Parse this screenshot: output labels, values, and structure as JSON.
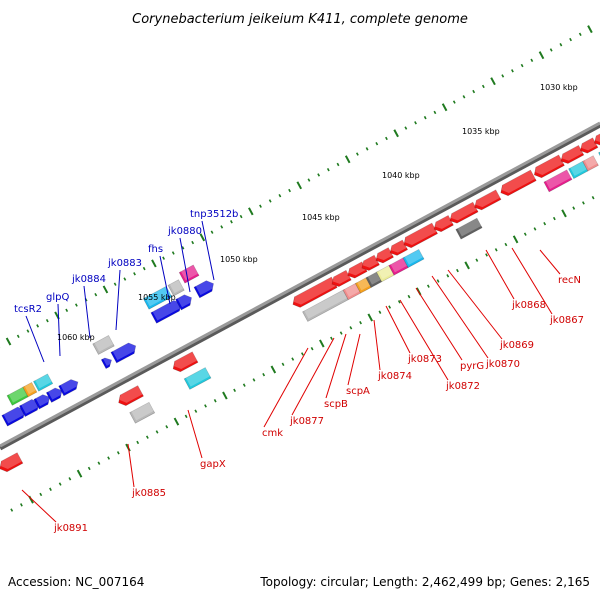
{
  "title": "Corynebacterium jeikeium K411, complete genome",
  "accession_text": "Accession: NC_007164",
  "summary_text": "Topology: circular; Length: 2,462,499 bp; Genes: 2,165",
  "colors": {
    "backbone": "#808080",
    "tick": "#1f7a1f",
    "label_forward": "#0000c0",
    "label_reverse": "#d00000",
    "leader_forward": "#0000c0",
    "leader_reverse": "#e00000"
  },
  "kbp_markers": [
    {
      "text": "1030 kbp"
    },
    {
      "text": "1035 kbp"
    },
    {
      "text": "1040 kbp"
    },
    {
      "text": "1045 kbp"
    },
    {
      "text": "1050 kbp"
    },
    {
      "text": "1055 kbp"
    },
    {
      "text": "1060 kbp"
    }
  ],
  "gene_labels": [
    {
      "text": "tcsR2",
      "strand": "forward"
    },
    {
      "text": "glpQ",
      "strand": "forward"
    },
    {
      "text": "jk0884",
      "strand": "forward"
    },
    {
      "text": "jk0883",
      "strand": "forward"
    },
    {
      "text": "fhs",
      "strand": "forward"
    },
    {
      "text": "jk0880",
      "strand": "forward"
    },
    {
      "text": "tnp3512b",
      "strand": "forward"
    },
    {
      "text": "recN",
      "strand": "reverse"
    },
    {
      "text": "jk0868",
      "strand": "reverse"
    },
    {
      "text": "jk0867",
      "strand": "reverse"
    },
    {
      "text": "jk0869",
      "strand": "reverse"
    },
    {
      "text": "jk0870",
      "strand": "reverse"
    },
    {
      "text": "pyrG",
      "strand": "reverse"
    },
    {
      "text": "jk0872",
      "strand": "reverse"
    },
    {
      "text": "jk0873",
      "strand": "reverse"
    },
    {
      "text": "jk0874",
      "strand": "reverse"
    },
    {
      "text": "scpA",
      "strand": "reverse"
    },
    {
      "text": "scpB",
      "strand": "reverse"
    },
    {
      "text": "jk0877",
      "strand": "reverse"
    },
    {
      "text": "cmk",
      "strand": "reverse"
    },
    {
      "text": "gapX",
      "strand": "reverse"
    },
    {
      "text": "jk0885",
      "strand": "reverse"
    },
    {
      "text": "jk0891",
      "strand": "reverse"
    }
  ],
  "feature_colors": {
    "red": "#ee1111",
    "blue": "#0a0ae0",
    "gray": "#b8b8b8",
    "dark_gray": "#606060",
    "cyan": "#22c8dc",
    "sky": "#1ab8ee",
    "magenta": "#e61e8c",
    "pink": "#f08c8c",
    "orange": "#f5a01e",
    "khaki": "#ecec9a",
    "green": "#3cc83c",
    "lavender": "#f0b4e6"
  }
}
